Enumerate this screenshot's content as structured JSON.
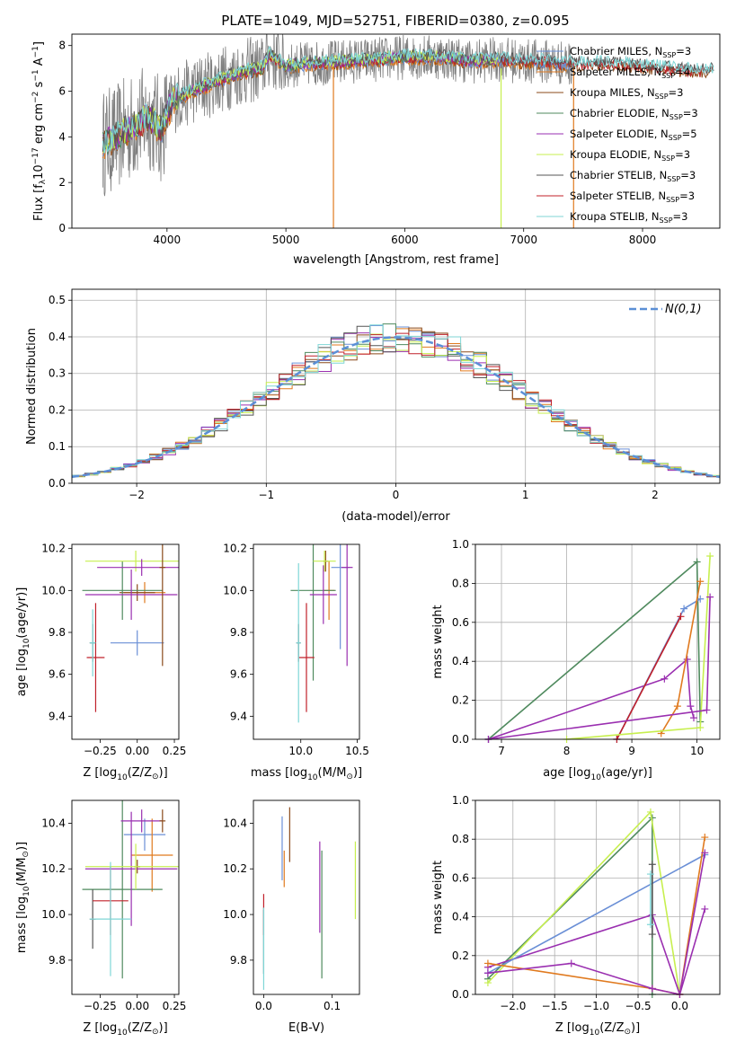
{
  "figure_title": "PLATE=1049, MJD=52751, FIBERID=0380, z=0.095",
  "colors": {
    "Chabrier MILES": "#6a8fd6",
    "Salpeter MILES": "#e07a1f",
    "Kroupa MILES": "#8b4a1a",
    "Chabrier ELODIE": "#4f8a5e",
    "Salpeter ELODIE": "#9a2fb0",
    "Kroupa ELODIE": "#c7ef4f",
    "Chabrier STELIB": "#555555",
    "Salpeter STELIB": "#c0202a",
    "Kroupa STELIB": "#7fd6d6",
    "normal_line": "#5b8fd6",
    "grid": "#b0b0b0"
  },
  "chart_data": [
    {
      "id": "spectrum",
      "type": "line",
      "xlabel": "wavelength [Angstrom, rest frame]",
      "ylabel": "Flux [f_λ 10^-17 erg cm^-2 s^-1 A^-1]",
      "xlim": [
        3200,
        8650
      ],
      "ylim": [
        0,
        8.5
      ],
      "xticks": [
        4000,
        5000,
        6000,
        7000,
        8000
      ],
      "yticks": [
        0,
        2,
        4,
        6,
        8
      ],
      "legend_position": "right",
      "series": [
        {
          "name": "Chabrier MILES",
          "nssp": "3"
        },
        {
          "name": "Salpeter MILES",
          "nssp": "4"
        },
        {
          "name": "Kroupa MILES",
          "nssp": "3"
        },
        {
          "name": "Chabrier ELODIE",
          "nssp": "3"
        },
        {
          "name": "Salpeter ELODIE",
          "nssp": "5"
        },
        {
          "name": "Kroupa ELODIE",
          "nssp": "3"
        },
        {
          "name": "Chabrier STELIB",
          "nssp": "3"
        },
        {
          "name": "Salpeter STELIB",
          "nssp": "3"
        },
        {
          "name": "Kroupa STELIB",
          "nssp": "3"
        }
      ],
      "continuum": {
        "x": [
          3450,
          3550,
          3700,
          3850,
          3950,
          4050,
          4200,
          4400,
          4600,
          4800,
          4860,
          5000,
          5200,
          5500,
          5800,
          6000,
          6300,
          6560,
          6800,
          7000,
          7200,
          7400,
          7600,
          7800,
          8000,
          8200,
          8400,
          8600
        ],
        "y": [
          3.7,
          3.9,
          4.4,
          4.9,
          4.3,
          5.6,
          6.0,
          6.4,
          6.8,
          7.0,
          7.6,
          7.1,
          7.2,
          7.3,
          7.4,
          7.5,
          7.5,
          7.3,
          7.4,
          7.3,
          7.3,
          7.2,
          7.2,
          7.2,
          7.1,
          7.0,
          6.9,
          6.9
        ]
      }
    },
    {
      "id": "residuals",
      "type": "line",
      "xlabel": "(data-model)/error",
      "ylabel": "Normed distribution",
      "xlim": [
        -2.5,
        2.5
      ],
      "ylim": [
        0,
        0.53
      ],
      "xticks": [
        -2,
        -1,
        0,
        1,
        2
      ],
      "yticks": [
        0.0,
        0.1,
        0.2,
        0.3,
        0.4,
        0.5
      ],
      "legend": "N(0,1)",
      "legend_position": "top-right",
      "gaussian": {
        "mean": 0,
        "sigma": 1
      }
    },
    {
      "id": "age-metallicity",
      "type": "scatter",
      "xlabel": "Z [log10(Z/Z⊙)]",
      "ylabel": "age  [log10(age/yr)]",
      "xlim": [
        -0.44,
        0.28
      ],
      "ylim": [
        9.29,
        10.22
      ],
      "xticks": [
        -0.25,
        0.0,
        0.25
      ],
      "yticks": [
        9.4,
        9.6,
        9.8,
        10.0,
        10.2
      ],
      "points": [
        {
          "series": "Chabrier MILES",
          "x": 0.0,
          "y": 9.75,
          "xerr": 0.18,
          "yerr": 0.06
        },
        {
          "series": "Salpeter MILES",
          "x": 0.05,
          "y": 9.99,
          "xerr": 0.14,
          "yerr": 0.05
        },
        {
          "series": "Kroupa MILES",
          "x": 0.0,
          "y": 9.99,
          "xerr": 0.12,
          "yerr": 0.04
        },
        {
          "series": "Chabrier ELODIE",
          "x": -0.1,
          "y": 10.0,
          "xerr": 0.27,
          "yerr": 0.14
        },
        {
          "series": "Salpeter ELODIE",
          "x": -0.04,
          "y": 9.98,
          "xerr": 0.31,
          "yerr": 0.12
        },
        {
          "series": "Kroupa ELODIE",
          "x": -0.01,
          "y": 10.14,
          "xerr": 0.34,
          "yerr": 0.05
        },
        {
          "series": "Chabrier STELIB",
          "x": -0.3,
          "y": 9.75,
          "xerr": 0.02,
          "yerr": 0.09
        },
        {
          "series": "Salpeter STELIB",
          "x": -0.28,
          "y": 9.68,
          "xerr": 0.06,
          "yerr": 0.26
        },
        {
          "series": "Kroupa STELIB",
          "x": -0.3,
          "y": 9.75,
          "xerr": 0.02,
          "yerr": 0.16
        },
        {
          "series": "Salpeter ELODIE 2",
          "x": 0.03,
          "y": 10.11,
          "xerr": 0.3,
          "yerr": 0.04
        },
        {
          "series": "Kroupa MILES 2",
          "x": 0.17,
          "y": 10.11,
          "xerr": 0.02,
          "yerr": 0.47
        }
      ]
    },
    {
      "id": "age-mass",
      "type": "scatter",
      "xlabel": "mass [log10(M/M⊙)]",
      "ylabel": "",
      "xlim": [
        9.58,
        10.52
      ],
      "ylim": [
        9.29,
        10.22
      ],
      "xticks": [
        10.0,
        10.5
      ],
      "yticks": [
        9.4,
        9.6,
        9.8,
        10.0,
        10.2
      ],
      "points": [
        {
          "series": "Chabrier MILES",
          "x": 10.35,
          "y": 10.11,
          "xerr": 0.08,
          "yerr": 0.39
        },
        {
          "series": "Salpeter MILES",
          "x": 10.25,
          "y": 10.0,
          "xerr": 0.05,
          "yerr": 0.14
        },
        {
          "series": "Kroupa MILES",
          "x": 10.22,
          "y": 10.14,
          "xerr": 0.02,
          "yerr": 0.05
        },
        {
          "series": "Chabrier ELODIE",
          "x": 10.11,
          "y": 10.0,
          "xerr": 0.2,
          "yerr": 0.43
        },
        {
          "series": "Salpeter ELODIE",
          "x": 10.2,
          "y": 9.98,
          "xerr": 0.12,
          "yerr": 0.14
        },
        {
          "series": "Kroupa ELODIE",
          "x": 10.21,
          "y": 10.14,
          "xerr": 0.1,
          "yerr": 0.05
        },
        {
          "series": "Chabrier STELIB",
          "x": 9.98,
          "y": 9.75,
          "xerr": 0.02,
          "yerr": 0.09
        },
        {
          "series": "Salpeter STELIB",
          "x": 10.05,
          "y": 9.68,
          "xerr": 0.07,
          "yerr": 0.26
        },
        {
          "series": "Kroupa STELIB",
          "x": 9.98,
          "y": 9.75,
          "xerr": 0.02,
          "yerr": 0.38
        },
        {
          "series": "Salpeter ELODIE 2",
          "x": 10.41,
          "y": 10.11,
          "xerr": 0.05,
          "yerr": 0.47
        }
      ]
    },
    {
      "id": "weight-age",
      "type": "line",
      "xlabel": "age  [log10(age/yr)]",
      "ylabel": "mass weight",
      "xlim": [
        6.6,
        10.35
      ],
      "ylim": [
        0,
        1.0
      ],
      "xticks": [
        7,
        8,
        9,
        10
      ],
      "yticks": [
        0.0,
        0.2,
        0.4,
        0.6,
        0.8,
        1.0
      ],
      "series": [
        {
          "name": "Chabrier ELODIE",
          "x": [
            6.8,
            10.0,
            10.05
          ],
          "y": [
            0.0,
            0.91,
            0.09
          ]
        },
        {
          "name": "Salpeter ELODIE",
          "x": [
            6.8,
            9.5,
            9.85,
            9.9,
            9.95
          ],
          "y": [
            0.0,
            0.31,
            0.41,
            0.17,
            0.11
          ]
        },
        {
          "name": "Chabrier MILES",
          "x": [
            8.77,
            9.8,
            10.05
          ],
          "y": [
            0.0,
            0.67,
            0.72
          ]
        },
        {
          "name": "Salpeter STELIB",
          "x": [
            8.77,
            9.75
          ],
          "y": [
            0.0,
            0.63
          ]
        },
        {
          "name": "Salpeter MILES",
          "x": [
            9.45,
            9.7,
            10.05
          ],
          "y": [
            0.03,
            0.17,
            0.81
          ]
        },
        {
          "name": "Kroupa ELODIE",
          "x": [
            8.0,
            10.05,
            10.2
          ],
          "y": [
            0.0,
            0.06,
            0.94
          ]
        },
        {
          "name": "Salpeter ELODIE 2",
          "x": [
            6.8,
            10.15,
            10.2
          ],
          "y": [
            0.0,
            0.15,
            0.73
          ]
        }
      ]
    },
    {
      "id": "mass-metallicity",
      "type": "scatter",
      "xlabel": "Z [log10(Z/Z⊙)]",
      "ylabel": "mass [log10(M/M⊙)]",
      "xlim": [
        -0.44,
        0.28
      ],
      "ylim": [
        9.65,
        10.5
      ],
      "xticks": [
        -0.25,
        0.0,
        0.25
      ],
      "yticks": [
        9.8,
        10.0,
        10.2,
        10.4
      ],
      "points": [
        {
          "series": "Chabrier MILES",
          "x": 0.05,
          "y": 10.35,
          "xerr": 0.14,
          "yerr": 0.07
        },
        {
          "series": "Salpeter MILES",
          "x": 0.1,
          "y": 10.26,
          "xerr": 0.14,
          "yerr": 0.16
        },
        {
          "series": "Kroupa MILES",
          "x": 0.0,
          "y": 10.21,
          "xerr": 0.02,
          "yerr": 0.03
        },
        {
          "series": "Chabrier ELODIE",
          "x": -0.1,
          "y": 10.11,
          "xerr": 0.27,
          "yerr": 0.39
        },
        {
          "series": "Salpeter ELODIE",
          "x": -0.04,
          "y": 10.2,
          "xerr": 0.31,
          "yerr": 0.25
        },
        {
          "series": "Kroupa ELODIE",
          "x": -0.01,
          "y": 10.21,
          "xerr": 0.34,
          "yerr": 0.1
        },
        {
          "series": "Chabrier STELIB",
          "x": -0.3,
          "y": 9.98,
          "xerr": 0.02,
          "yerr": 0.13
        },
        {
          "series": "Salpeter STELIB",
          "x": -0.18,
          "y": 10.06,
          "xerr": 0.12,
          "yerr": 0.15
        },
        {
          "series": "Kroupa STELIB",
          "x": -0.18,
          "y": 9.98,
          "xerr": 0.14,
          "yerr": 0.25
        },
        {
          "series": "Salpeter ELODIE 2",
          "x": 0.03,
          "y": 10.41,
          "xerr": 0.14,
          "yerr": 0.05
        },
        {
          "series": "Kroupa MILES 2",
          "x": 0.17,
          "y": 10.41,
          "xerr": 0.02,
          "yerr": 0.05
        }
      ]
    },
    {
      "id": "mass-ebv",
      "type": "scatter",
      "xlabel": "E(B-V)",
      "ylabel": "",
      "xlim": [
        -0.015,
        0.14
      ],
      "ylim": [
        9.65,
        10.5
      ],
      "xticks": [
        0.0,
        0.1
      ],
      "yticks": [
        9.8,
        10.0,
        10.2,
        10.4
      ],
      "points": [
        {
          "series": "Chabrier MILES",
          "x": 0.027,
          "y": 10.29,
          "yerr": 0.14
        },
        {
          "series": "Salpeter MILES",
          "x": 0.03,
          "y": 10.2,
          "yerr": 0.08
        },
        {
          "series": "Kroupa MILES",
          "x": 0.038,
          "y": 10.35,
          "yerr": 0.12
        },
        {
          "series": "Chabrier ELODIE",
          "x": 0.085,
          "y": 10.0,
          "yerr": 0.28
        },
        {
          "series": "Salpeter ELODIE",
          "x": 0.082,
          "y": 10.12,
          "yerr": 0.2
        },
        {
          "series": "Kroupa ELODIE",
          "x": 0.134,
          "y": 10.15,
          "yerr": 0.17
        },
        {
          "series": "Chabrier STELIB",
          "x": 0.0,
          "y": 9.88,
          "yerr": 0.14
        },
        {
          "series": "Salpeter STELIB",
          "x": 0.0,
          "y": 10.0,
          "yerr": 0.09
        },
        {
          "series": "Kroupa STELIB",
          "x": 0.0,
          "y": 9.85,
          "yerr": 0.18
        }
      ]
    },
    {
      "id": "weight-metallicity",
      "type": "line",
      "xlabel": "Z [log10(Z/Z⊙)]",
      "ylabel": "mass weight",
      "xlim": [
        -2.45,
        0.48
      ],
      "ylim": [
        0,
        1.0
      ],
      "xticks": [
        -2.0,
        -1.5,
        -1.0,
        -0.5,
        0.0
      ],
      "yticks": [
        0.0,
        0.2,
        0.4,
        0.6,
        0.8,
        1.0
      ],
      "series": [
        {
          "name": "Chabrier ELODIE",
          "x": [
            -2.3,
            -0.33,
            -0.33
          ],
          "y": [
            0.08,
            0.91,
            0.0
          ]
        },
        {
          "name": "Kroupa ELODIE",
          "x": [
            -2.3,
            -0.35,
            0.0
          ],
          "y": [
            0.06,
            0.94,
            0.0
          ]
        },
        {
          "name": "Salpeter ELODIE",
          "x": [
            -2.3,
            -0.33,
            0.0,
            0.3
          ],
          "y": [
            0.14,
            0.41,
            0.0,
            0.44
          ]
        },
        {
          "name": "Chabrier MILES",
          "x": [
            -2.3,
            0.3
          ],
          "y": [
            0.11,
            0.72
          ]
        },
        {
          "name": "Salpeter MILES",
          "x": [
            -2.3,
            -0.33,
            0.0,
            0.3
          ],
          "y": [
            0.16,
            0.03,
            0.0,
            0.81
          ]
        },
        {
          "name": "Salpeter ELODIE 2",
          "x": [
            -2.3,
            -1.3,
            -0.33,
            0.0,
            0.3
          ],
          "y": [
            0.11,
            0.16,
            0.03,
            0.0,
            0.73
          ]
        },
        {
          "name": "Chabrier STELIB",
          "x": [
            -0.33,
            -0.33
          ],
          "y": [
            0.31,
            0.67
          ]
        },
        {
          "name": "Kroupa STELIB",
          "x": [
            -0.35,
            -0.35
          ],
          "y": [
            0.36,
            0.62
          ]
        }
      ]
    }
  ]
}
